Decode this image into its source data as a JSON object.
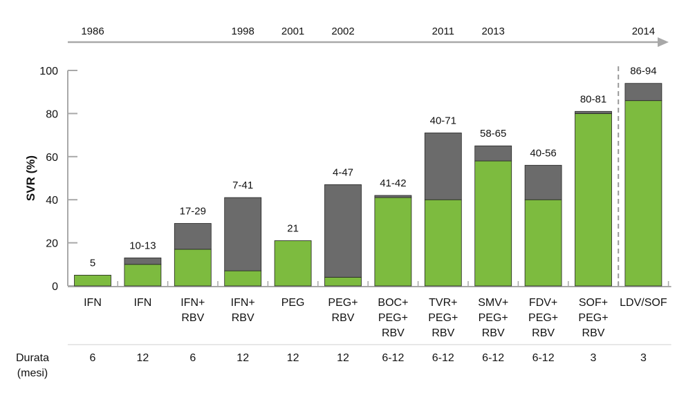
{
  "chart_data": {
    "type": "bar",
    "stacked": true,
    "ylabel": "SVR (%)",
    "ylim": [
      0,
      100
    ],
    "yticks": [
      0,
      20,
      40,
      60,
      80,
      100
    ],
    "grid": false,
    "categories": [
      [
        "IFN"
      ],
      [
        "IFN"
      ],
      [
        "IFN+",
        "RBV"
      ],
      [
        "IFN+",
        "RBV"
      ],
      [
        "PEG"
      ],
      [
        "PEG+",
        "RBV"
      ],
      [
        "BOC+",
        "PEG+",
        "RBV"
      ],
      [
        "TVR+",
        "PEG+",
        "RBV"
      ],
      [
        "SMV+",
        "PEG+",
        "RBV"
      ],
      [
        "FDV+",
        "PEG+",
        "RBV"
      ],
      [
        "SOF+",
        "PEG+",
        "RBV"
      ],
      [
        "LDV/SOF"
      ]
    ],
    "series": [
      {
        "values": [
          5,
          10,
          17,
          7,
          21,
          4,
          41,
          40,
          58,
          40,
          80,
          86
        ]
      },
      {
        "values": [
          0,
          3,
          12,
          34,
          0,
          43,
          1,
          31,
          7,
          16,
          1,
          8
        ]
      }
    ],
    "bar_labels": [
      "5",
      "10-13",
      "17-29",
      "7-41",
      "21",
      "4-47",
      "41-42",
      "40-71",
      "58-65",
      "40-56",
      "80-81",
      "86-94"
    ],
    "timeline": {
      "years": [
        {
          "label": "1986",
          "bar": 0
        },
        {
          "label": "1998",
          "bar": 3
        },
        {
          "label": "2001",
          "bar": 4
        },
        {
          "label": "2002",
          "bar": 5
        },
        {
          "label": "2011",
          "bar": 7
        },
        {
          "label": "2013",
          "bar": 8
        },
        {
          "label": "2014",
          "bar": 11
        }
      ]
    },
    "duration": {
      "label_line1": "Durata",
      "label_line2": "(mesi)",
      "values": [
        "6",
        "12",
        "6",
        "12",
        "12",
        "12",
        "6-12",
        "6-12",
        "6-12",
        "6-12",
        "3",
        "3"
      ]
    },
    "colors": {
      "series1": "#7dbb3f",
      "series2": "#6b6b6b",
      "axis": "#a8a8a8",
      "divider": "#999999"
    }
  }
}
